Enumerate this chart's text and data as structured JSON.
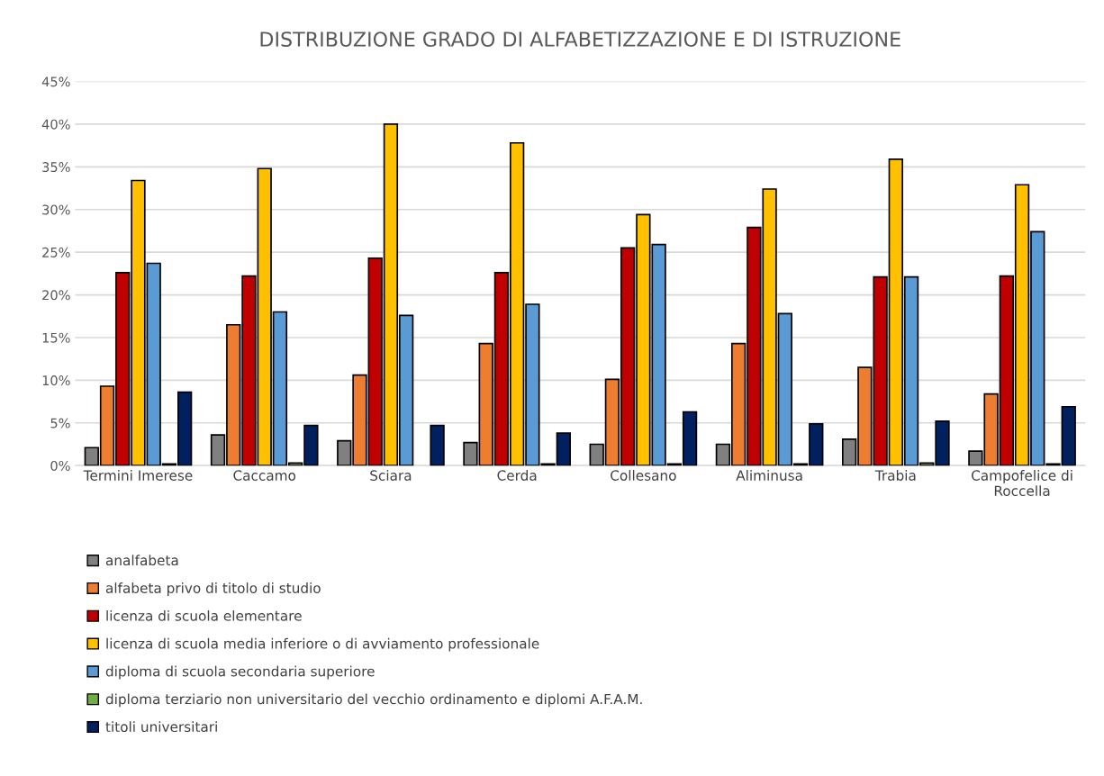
{
  "chart_data": {
    "type": "bar",
    "title": "DISTRIBUZIONE GRADO DI ALFABETIZZAZIONE E DI ISTRUZIONE",
    "categories": [
      "Termini Imerese",
      "Caccamo",
      "Sciara",
      "Cerda",
      "Collesano",
      "Aliminusa",
      "Trabia",
      "Campofelice di Roccella"
    ],
    "series": [
      {
        "name": "analfabeta",
        "color": "#808080",
        "values": [
          2.1,
          3.6,
          2.9,
          2.7,
          2.5,
          2.5,
          3.1,
          1.7
        ]
      },
      {
        "name": "alfabeta privo di titolo di studio",
        "color": "#ed7d31",
        "values": [
          9.3,
          16.5,
          10.6,
          14.3,
          10.1,
          14.3,
          11.5,
          8.4
        ]
      },
      {
        "name": "licenza di scuola elementare",
        "color": "#c00000",
        "values": [
          22.6,
          22.2,
          24.3,
          22.6,
          25.5,
          27.9,
          22.1,
          22.2
        ]
      },
      {
        "name": "licenza di scuola media inferiore o di avviamento professionale",
        "color": "#ffc000",
        "values": [
          33.4,
          34.8,
          40.0,
          37.8,
          29.4,
          32.4,
          35.9,
          32.9
        ]
      },
      {
        "name": "diploma di scuola secondaria superiore",
        "color": "#5b9bd5",
        "values": [
          23.7,
          18.0,
          17.6,
          18.9,
          25.9,
          17.8,
          22.1,
          27.4
        ]
      },
      {
        "name": "diploma terziario non universitario del vecchio ordinamento e diplomi A.F.A.M.",
        "color": "#70ad47",
        "values": [
          0.2,
          0.3,
          null,
          0.2,
          0.2,
          0.2,
          0.3,
          0.2
        ]
      },
      {
        "name": "titoli universitari",
        "color": "#002060",
        "values": [
          8.6,
          4.7,
          4.7,
          3.8,
          6.3,
          4.9,
          5.2,
          6.9
        ]
      }
    ],
    "ylim": [
      0,
      45
    ],
    "yticks": [
      {
        "value": 0,
        "label": "0%"
      },
      {
        "value": 5,
        "label": "5%"
      },
      {
        "value": 10,
        "label": "10%"
      },
      {
        "value": 15,
        "label": "15%"
      },
      {
        "value": 20,
        "label": "20%"
      },
      {
        "value": 25,
        "label": "25%"
      },
      {
        "value": 30,
        "label": "30%"
      },
      {
        "value": 35,
        "label": "35%"
      },
      {
        "value": 40,
        "label": "40%"
      },
      {
        "value": 45,
        "label": "45%"
      }
    ],
    "grid": "y",
    "legend": "bottom"
  }
}
